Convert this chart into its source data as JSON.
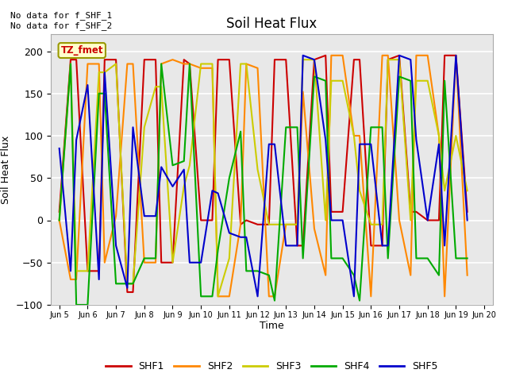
{
  "title": "Soil Heat Flux",
  "ylabel": "Soil Heat Flux",
  "xlabel": "Time",
  "ylim": [
    -100,
    220
  ],
  "yticks": [
    -100,
    -50,
    0,
    50,
    100,
    150,
    200
  ],
  "annotation_text": "No data for f_SHF_1\nNo data for f_SHF_2",
  "box_label": "TZ_fmet",
  "background_color": "#e8e8e8",
  "series": {
    "SHF1": {
      "color": "#cc0000",
      "times": [
        5.0,
        5.4,
        5.6,
        6.0,
        6.4,
        6.6,
        7.0,
        7.4,
        7.6,
        8.0,
        8.4,
        8.6,
        9.0,
        9.4,
        9.6,
        10.0,
        10.4,
        10.6,
        11.0,
        11.4,
        11.6,
        12.0,
        12.4,
        12.6,
        13.0,
        13.4,
        13.6,
        14.0,
        14.4,
        14.6,
        15.0,
        15.4,
        15.6,
        16.0,
        16.4,
        16.6,
        17.0,
        17.4,
        17.6,
        18.0,
        18.4,
        18.6,
        19.0,
        19.4
      ],
      "values": [
        10,
        190,
        190,
        -60,
        -60,
        190,
        190,
        -85,
        -85,
        190,
        190,
        -50,
        -50,
        190,
        185,
        0,
        0,
        190,
        190,
        -5,
        0,
        -5,
        -5,
        190,
        190,
        -30,
        -30,
        190,
        195,
        10,
        10,
        190,
        190,
        -30,
        -30,
        190,
        195,
        10,
        10,
        0,
        0,
        195,
        195,
        10
      ]
    },
    "SHF2": {
      "color": "#ff8800",
      "times": [
        5.0,
        5.4,
        5.6,
        6.0,
        6.4,
        6.6,
        7.0,
        7.4,
        7.6,
        8.0,
        8.4,
        8.6,
        9.0,
        9.4,
        9.6,
        10.0,
        10.4,
        10.6,
        11.0,
        11.4,
        11.6,
        12.0,
        12.4,
        12.6,
        13.0,
        13.4,
        13.6,
        14.0,
        14.4,
        14.6,
        15.0,
        15.4,
        15.6,
        16.0,
        16.4,
        16.6,
        17.0,
        17.4,
        17.6,
        18.0,
        18.4,
        18.6,
        19.0,
        19.4
      ],
      "values": [
        0,
        -70,
        -70,
        185,
        185,
        -50,
        5,
        185,
        185,
        -50,
        -50,
        185,
        190,
        185,
        185,
        180,
        180,
        -90,
        -90,
        -5,
        185,
        180,
        -90,
        -90,
        -5,
        -5,
        152,
        -10,
        -65,
        195,
        195,
        100,
        100,
        -90,
        195,
        195,
        0,
        -65,
        195,
        195,
        100,
        -90,
        195,
        -65
      ]
    },
    "SHF3": {
      "color": "#cccc00",
      "times": [
        5.0,
        5.4,
        5.6,
        6.0,
        6.4,
        6.6,
        7.0,
        7.4,
        7.6,
        8.0,
        8.4,
        8.6,
        9.0,
        9.4,
        9.6,
        10.0,
        10.4,
        10.6,
        11.0,
        11.4,
        11.6,
        12.0,
        12.4,
        12.6,
        13.0,
        13.4,
        13.6,
        14.0,
        14.4,
        14.6,
        15.0,
        15.4,
        15.6,
        16.0,
        16.4,
        16.6,
        17.0,
        17.4,
        17.6,
        18.0,
        18.4,
        18.6,
        19.0,
        19.4
      ],
      "values": [
        0,
        185,
        -60,
        -60,
        175,
        175,
        185,
        -75,
        -75,
        110,
        158,
        158,
        -50,
        40,
        65,
        185,
        185,
        -90,
        -45,
        185,
        185,
        60,
        -5,
        -5,
        -5,
        -5,
        190,
        190,
        0,
        165,
        165,
        100,
        35,
        -5,
        -5,
        190,
        190,
        0,
        165,
        165,
        100,
        35,
        100,
        35
      ]
    },
    "SHF4": {
      "color": "#00aa00",
      "times": [
        5.0,
        5.4,
        5.6,
        6.0,
        6.4,
        6.6,
        7.0,
        7.4,
        7.6,
        8.0,
        8.4,
        8.6,
        9.0,
        9.4,
        9.6,
        10.0,
        10.4,
        10.6,
        11.0,
        11.4,
        11.6,
        12.0,
        12.4,
        12.6,
        13.0,
        13.4,
        13.6,
        14.0,
        14.4,
        14.6,
        15.0,
        15.4,
        15.6,
        16.0,
        16.4,
        16.6,
        17.0,
        17.4,
        17.6,
        18.0,
        18.4,
        18.6,
        19.0,
        19.4
      ],
      "values": [
        0,
        185,
        -100,
        -100,
        150,
        150,
        -75,
        -75,
        -75,
        -45,
        -45,
        185,
        65,
        70,
        185,
        -90,
        -90,
        -35,
        50,
        105,
        -60,
        -60,
        -65,
        -95,
        110,
        110,
        -45,
        170,
        165,
        -45,
        -45,
        -65,
        -95,
        110,
        110,
        -45,
        170,
        165,
        -45,
        -45,
        -65,
        165,
        -45,
        -45
      ]
    },
    "SHF5": {
      "color": "#0000cc",
      "times": [
        5.0,
        5.4,
        5.6,
        6.0,
        6.4,
        6.6,
        7.0,
        7.4,
        7.6,
        8.0,
        8.4,
        8.6,
        9.0,
        9.4,
        9.6,
        10.0,
        10.4,
        10.6,
        11.0,
        11.4,
        11.6,
        12.0,
        12.4,
        12.6,
        13.0,
        13.4,
        13.6,
        14.0,
        14.4,
        14.6,
        15.0,
        15.4,
        15.6,
        16.0,
        16.4,
        16.6,
        17.0,
        17.4,
        17.6,
        18.0,
        18.4,
        18.6,
        19.0,
        19.4
      ],
      "values": [
        85,
        -60,
        95,
        160,
        -70,
        175,
        -30,
        -80,
        110,
        5,
        5,
        63,
        40,
        60,
        -50,
        -50,
        35,
        32,
        -15,
        -20,
        -20,
        -90,
        90,
        90,
        -30,
        -30,
        195,
        190,
        95,
        0,
        0,
        -90,
        90,
        90,
        -30,
        -30,
        195,
        190,
        95,
        0,
        90,
        -30,
        195,
        0
      ]
    }
  },
  "xtick_days": [
    5,
    6,
    7,
    8,
    9,
    10,
    11,
    12,
    13,
    14,
    15,
    16,
    17,
    18,
    19,
    20
  ],
  "xtick_labels": [
    "Jun 5",
    "Jun 6",
    "Jun 7",
    "Jun 8",
    "Jun 9",
    "Jun 10",
    "Jun 11",
    "Jun 12",
    "Jun 13",
    "Jun 14",
    "Jun 15",
    "Jun 16",
    "Jun 17",
    "Jun 18",
    "Jun 19",
    "Jun 20"
  ]
}
